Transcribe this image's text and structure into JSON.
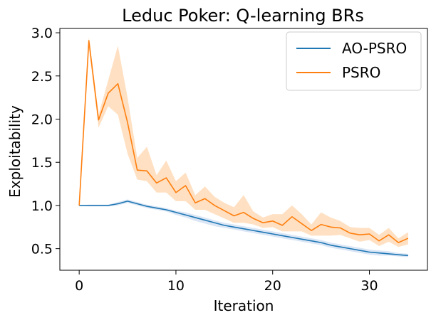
{
  "chart_data": {
    "type": "line",
    "title": "Leduc Poker: Q-learning BRs",
    "xlabel": "Iteration",
    "ylabel": "Exploitability",
    "xlim": [
      -2,
      36
    ],
    "ylim": [
      0.25,
      3.05
    ],
    "xticks": [
      0,
      10,
      20,
      30
    ],
    "yticks": [
      0.5,
      1.0,
      1.5,
      2.0,
      2.5,
      3.0
    ],
    "xtick_labels": [
      "0",
      "10",
      "20",
      "30"
    ],
    "ytick_labels": [
      "0.5",
      "1.0",
      "1.5",
      "2.0",
      "2.5",
      "3.0"
    ],
    "grid": false,
    "legend_position": "top-right",
    "x": [
      0,
      1,
      2,
      3,
      4,
      5,
      6,
      7,
      8,
      9,
      10,
      11,
      12,
      13,
      14,
      15,
      16,
      17,
      18,
      19,
      20,
      21,
      22,
      23,
      24,
      25,
      26,
      27,
      28,
      29,
      30,
      31,
      32,
      33,
      34
    ],
    "series": [
      {
        "name": "AO-PSRO",
        "color": "#1f77b4",
        "band_color": "#aec7e8",
        "values": [
          1.0,
          1.0,
          1.0,
          1.0,
          1.02,
          1.05,
          1.02,
          0.99,
          0.97,
          0.95,
          0.92,
          0.89,
          0.86,
          0.83,
          0.8,
          0.77,
          0.75,
          0.73,
          0.71,
          0.69,
          0.67,
          0.65,
          0.63,
          0.61,
          0.59,
          0.57,
          0.54,
          0.52,
          0.5,
          0.48,
          0.46,
          0.45,
          0.44,
          0.43,
          0.42
        ],
        "lower": [
          1.0,
          0.99,
          0.99,
          0.99,
          1.0,
          1.03,
          1.0,
          0.97,
          0.95,
          0.93,
          0.89,
          0.86,
          0.82,
          0.79,
          0.76,
          0.74,
          0.72,
          0.7,
          0.68,
          0.66,
          0.64,
          0.62,
          0.6,
          0.58,
          0.56,
          0.54,
          0.51,
          0.49,
          0.47,
          0.45,
          0.43,
          0.42,
          0.42,
          0.41,
          0.4
        ],
        "upper": [
          1.0,
          1.01,
          1.01,
          1.01,
          1.04,
          1.07,
          1.04,
          1.01,
          0.99,
          0.97,
          0.94,
          0.92,
          0.89,
          0.86,
          0.83,
          0.8,
          0.78,
          0.76,
          0.74,
          0.72,
          0.7,
          0.68,
          0.66,
          0.64,
          0.62,
          0.6,
          0.57,
          0.55,
          0.53,
          0.51,
          0.49,
          0.48,
          0.47,
          0.45,
          0.44
        ]
      },
      {
        "name": "PSRO",
        "color": "#ff7f0e",
        "band_color": "#ffbb78",
        "values": [
          1.0,
          2.91,
          1.99,
          2.3,
          2.41,
          1.96,
          1.41,
          1.4,
          1.26,
          1.32,
          1.15,
          1.23,
          1.03,
          1.08,
          1.0,
          0.94,
          0.88,
          0.92,
          0.85,
          0.8,
          0.82,
          0.77,
          0.87,
          0.79,
          0.71,
          0.78,
          0.75,
          0.74,
          0.68,
          0.66,
          0.67,
          0.59,
          0.66,
          0.57,
          0.62
        ],
        "lower": [
          1.0,
          2.82,
          1.9,
          2.15,
          2.05,
          1.6,
          1.3,
          1.28,
          1.15,
          1.15,
          1.05,
          1.05,
          0.95,
          0.95,
          0.9,
          0.85,
          0.8,
          0.8,
          0.78,
          0.74,
          0.75,
          0.7,
          0.7,
          0.7,
          0.65,
          0.65,
          0.65,
          0.66,
          0.62,
          0.58,
          0.6,
          0.53,
          0.58,
          0.52,
          0.55
        ],
        "upper": [
          1.0,
          2.95,
          2.05,
          2.45,
          2.85,
          2.25,
          1.55,
          1.68,
          1.35,
          1.52,
          1.28,
          1.38,
          1.12,
          1.22,
          1.1,
          1.03,
          0.98,
          1.12,
          0.93,
          0.86,
          0.9,
          0.9,
          1.0,
          0.9,
          0.78,
          0.92,
          0.86,
          0.82,
          0.75,
          0.74,
          0.74,
          0.66,
          0.74,
          0.62,
          0.69
        ]
      }
    ]
  }
}
